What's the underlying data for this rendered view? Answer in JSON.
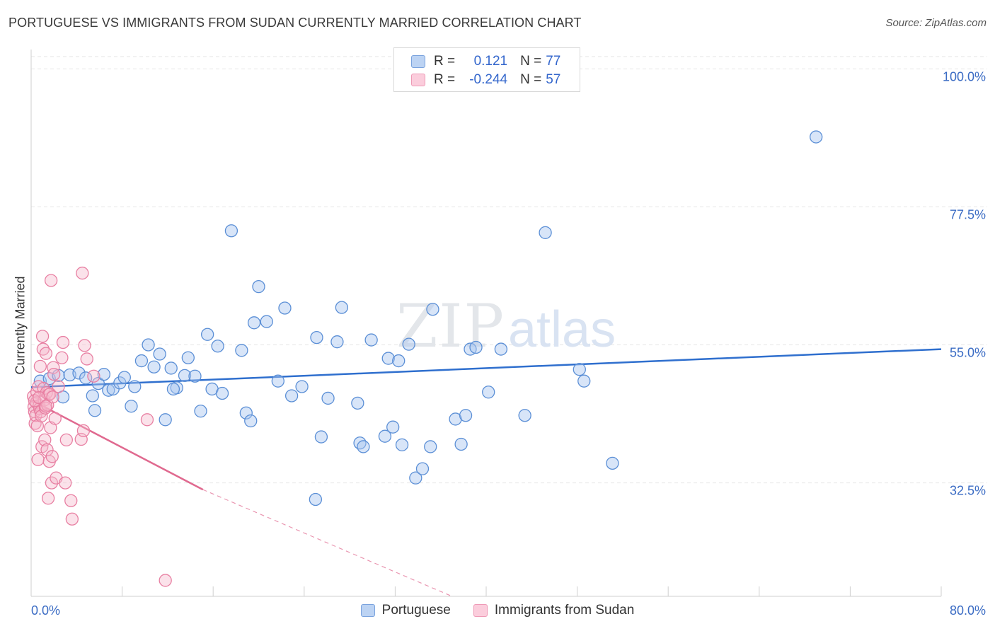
{
  "title": "PORTUGUESE VS IMMIGRANTS FROM SUDAN CURRENTLY MARRIED CORRELATION CHART",
  "source": "Source: ZipAtlas.com",
  "watermark": {
    "zip": "ZIP",
    "atlas": "atlas"
  },
  "legend_top": [
    {
      "r_label": "R =",
      "r_value": "0.121",
      "n_label": "N =",
      "n_value": "77"
    },
    {
      "r_label": "R =",
      "r_value": "-0.244",
      "n_label": "N =",
      "n_value": "57"
    }
  ],
  "colors": {
    "blue_fill": "#a9c6f0",
    "blue_stroke": "#5b8fd6",
    "blue_line": "#2f6fce",
    "pink_fill": "#f6b6ca",
    "pink_stroke": "#e87fa2",
    "pink_line": "#e0698f",
    "tick_text": "#3b6cc4",
    "grid": "#e6e6e6"
  },
  "chart_data": {
    "type": "scatter",
    "title": "PORTUGUESE VS IMMIGRANTS FROM SUDAN CURRENTLY MARRIED CORRELATION CHART",
    "xlabel": "",
    "ylabel": "Currently Married",
    "xlim": [
      0,
      80
    ],
    "ylim": [
      14,
      102
    ],
    "x_tick_labels": [
      "0.0%",
      "80.0%"
    ],
    "y_ticks": [
      32.5,
      55.0,
      77.5,
      100.0
    ],
    "y_tick_labels": [
      "32.5%",
      "55.0%",
      "77.5%",
      "100.0%"
    ],
    "grid": true,
    "legend": "bottom-center",
    "series": [
      {
        "name": "Portuguese",
        "color": "#a9c6f0",
        "trend": {
          "x": [
            0,
            80
          ],
          "y": [
            48.1,
            54.3
          ]
        },
        "points": [
          [
            0.8,
            49.1
          ],
          [
            1.6,
            49.5
          ],
          [
            2.4,
            50.0
          ],
          [
            2.8,
            46.5
          ],
          [
            3.4,
            50.1
          ],
          [
            4.2,
            50.4
          ],
          [
            4.8,
            49.6
          ],
          [
            5.4,
            46.7
          ],
          [
            5.6,
            44.3
          ],
          [
            5.9,
            48.7
          ],
          [
            6.4,
            50.2
          ],
          [
            6.8,
            47.6
          ],
          [
            7.2,
            47.8
          ],
          [
            7.8,
            48.8
          ],
          [
            8.2,
            49.7
          ],
          [
            8.8,
            45.0
          ],
          [
            9.1,
            48.2
          ],
          [
            9.7,
            52.4
          ],
          [
            10.3,
            55.0
          ],
          [
            10.8,
            51.4
          ],
          [
            11.3,
            53.5
          ],
          [
            11.8,
            42.8
          ],
          [
            12.3,
            51.2
          ],
          [
            12.8,
            48.0
          ],
          [
            13.5,
            50.0
          ],
          [
            13.8,
            52.9
          ],
          [
            14.4,
            49.9
          ],
          [
            14.9,
            44.2
          ],
          [
            15.5,
            56.7
          ],
          [
            15.9,
            47.8
          ],
          [
            16.4,
            54.8
          ],
          [
            16.8,
            47.1
          ],
          [
            17.6,
            73.6
          ],
          [
            18.5,
            54.1
          ],
          [
            18.9,
            43.9
          ],
          [
            19.3,
            42.6
          ],
          [
            19.6,
            58.6
          ],
          [
            20.0,
            64.5
          ],
          [
            20.7,
            58.8
          ],
          [
            21.7,
            49.1
          ],
          [
            22.3,
            61.0
          ],
          [
            22.9,
            46.7
          ],
          [
            23.8,
            48.2
          ],
          [
            25.1,
            56.2
          ],
          [
            25.5,
            40.0
          ],
          [
            26.1,
            46.3
          ],
          [
            26.9,
            55.5
          ],
          [
            27.3,
            61.1
          ],
          [
            28.7,
            45.5
          ],
          [
            28.9,
            39.0
          ],
          [
            29.2,
            38.4
          ],
          [
            29.9,
            55.8
          ],
          [
            31.1,
            40.1
          ],
          [
            31.4,
            52.8
          ],
          [
            31.8,
            41.6
          ],
          [
            32.3,
            52.4
          ],
          [
            32.6,
            38.7
          ],
          [
            33.2,
            55.1
          ],
          [
            33.8,
            33.3
          ],
          [
            34.4,
            34.8
          ],
          [
            35.1,
            38.4
          ],
          [
            35.3,
            60.8
          ],
          [
            37.3,
            42.9
          ],
          [
            37.8,
            38.8
          ],
          [
            38.2,
            43.5
          ],
          [
            38.6,
            54.3
          ],
          [
            39.1,
            54.6
          ],
          [
            41.3,
            54.3
          ],
          [
            43.4,
            43.5
          ],
          [
            45.2,
            73.3
          ],
          [
            48.2,
            51.0
          ],
          [
            48.6,
            49.1
          ],
          [
            51.1,
            35.7
          ],
          [
            69.0,
            88.9
          ],
          [
            25.0,
            29.8
          ],
          [
            12.5,
            47.8
          ],
          [
            40.2,
            47.3
          ]
        ]
      },
      {
        "name": "Immigrants from Sudan",
        "color": "#f6b6ca",
        "trend": {
          "x": [
            0,
            15.1
          ],
          "y": [
            46.0,
            31.4
          ]
        },
        "trend_dashed": {
          "x": [
            15.1,
            37.0
          ],
          "y": [
            31.4,
            14.0
          ]
        },
        "points": [
          [
            0.2,
            46.6
          ],
          [
            0.25,
            44.9
          ],
          [
            0.3,
            44.1
          ],
          [
            0.35,
            42.2
          ],
          [
            0.4,
            43.5
          ],
          [
            0.45,
            45.6
          ],
          [
            0.5,
            47.3
          ],
          [
            0.55,
            41.8
          ],
          [
            0.6,
            36.3
          ],
          [
            0.65,
            48.2
          ],
          [
            0.7,
            45.1
          ],
          [
            0.75,
            44.6
          ],
          [
            0.8,
            51.5
          ],
          [
            0.85,
            44.1
          ],
          [
            0.9,
            43.4
          ],
          [
            0.95,
            38.4
          ],
          [
            1.0,
            56.4
          ],
          [
            1.05,
            54.3
          ],
          [
            1.1,
            47.9
          ],
          [
            1.15,
            46.0
          ],
          [
            1.2,
            39.5
          ],
          [
            1.25,
            44.7
          ],
          [
            1.3,
            53.6
          ],
          [
            1.35,
            47.2
          ],
          [
            1.4,
            37.9
          ],
          [
            1.45,
            45.2
          ],
          [
            1.5,
            30.0
          ],
          [
            1.55,
            46.9
          ],
          [
            1.6,
            36.0
          ],
          [
            1.65,
            47.0
          ],
          [
            1.7,
            41.5
          ],
          [
            1.75,
            65.5
          ],
          [
            1.8,
            32.5
          ],
          [
            1.85,
            36.8
          ],
          [
            1.9,
            46.5
          ],
          [
            1.95,
            51.3
          ],
          [
            2.0,
            50.2
          ],
          [
            2.1,
            43.0
          ],
          [
            2.2,
            33.3
          ],
          [
            2.4,
            48.2
          ],
          [
            2.7,
            52.9
          ],
          [
            2.8,
            55.4
          ],
          [
            3.0,
            32.5
          ],
          [
            3.1,
            39.5
          ],
          [
            3.5,
            29.6
          ],
          [
            3.6,
            26.6
          ],
          [
            4.4,
            39.6
          ],
          [
            4.5,
            66.7
          ],
          [
            4.6,
            41.0
          ],
          [
            4.7,
            54.9
          ],
          [
            4.9,
            52.7
          ],
          [
            5.5,
            49.9
          ],
          [
            10.2,
            42.8
          ],
          [
            11.8,
            16.6
          ],
          [
            0.3,
            45.9
          ],
          [
            0.7,
            46.4
          ],
          [
            1.3,
            45.0
          ]
        ]
      }
    ]
  }
}
